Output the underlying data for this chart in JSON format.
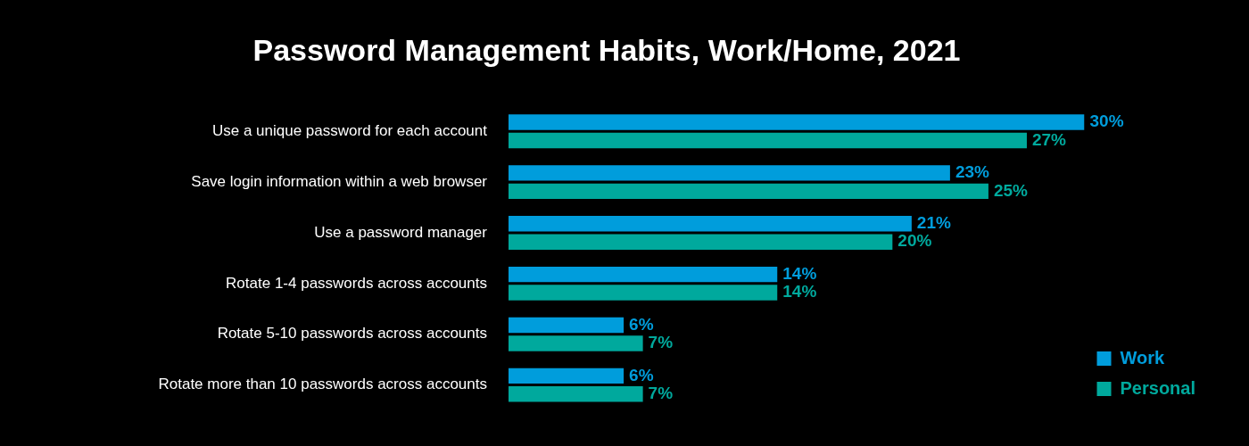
{
  "chart_data": {
    "type": "bar",
    "orientation": "horizontal",
    "title": "Password Management Habits, Work/Home, 2021",
    "categories": [
      "Use a unique password for each account",
      "Save login information within a web browser",
      "Use a password manager",
      "Rotate 1-4 passwords across accounts",
      "Rotate 5-10 passwords across accounts",
      "Rotate more than 10 passwords across accounts"
    ],
    "series": [
      {
        "name": "Work",
        "color": "#009ddc",
        "values": [
          30,
          23,
          21,
          14,
          6,
          6
        ],
        "value_labels": [
          "30%",
          "23%",
          "21%",
          "14%",
          "6%",
          "6%"
        ]
      },
      {
        "name": "Personal",
        "color": "#00a99d",
        "values": [
          27,
          25,
          20,
          14,
          7,
          7
        ],
        "value_labels": [
          "27%",
          "25%",
          "20%",
          "14%",
          "7%",
          "7%"
        ]
      }
    ],
    "legend": "bottom right"
  }
}
